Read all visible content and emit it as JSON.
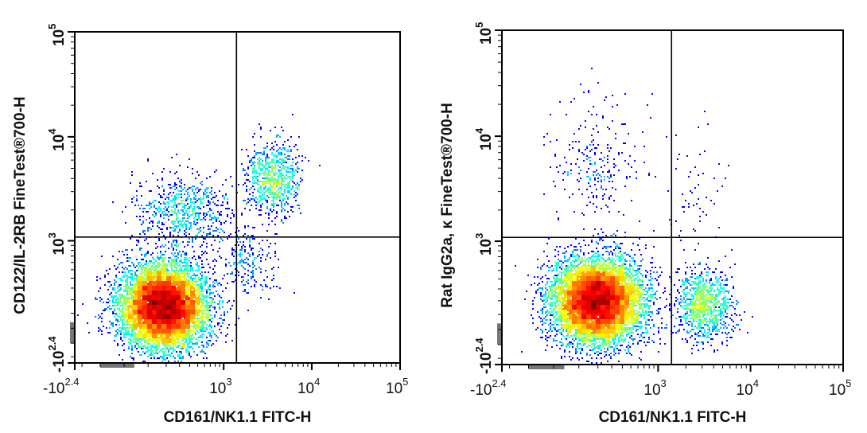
{
  "chart_data": [
    {
      "type": "scatter",
      "subtype": "flow-cytometry-density-dot-plot",
      "xlabel": "CD161/NK1.1 FITC-H",
      "ylabel": "CD122/IL-2RB  FineTest®700-H",
      "xscale": "biexponential",
      "yscale": "biexponential",
      "xlim": [
        -251,
        100000
      ],
      "ylim": [
        -251,
        100000
      ],
      "xticks": [
        {
          "value": -251,
          "base": "-10",
          "exp": "2.4"
        },
        {
          "value": 1000,
          "base": "10",
          "exp": "3"
        },
        {
          "value": 10000,
          "base": "10",
          "exp": "4"
        },
        {
          "value": 100000,
          "base": "10",
          "exp": "5"
        }
      ],
      "yticks": [
        {
          "value": -251,
          "base": "-10",
          "exp": "2.4"
        },
        {
          "value": 1000,
          "base": "10",
          "exp": "3"
        },
        {
          "value": 10000,
          "base": "10",
          "exp": "4"
        },
        {
          "value": 100000,
          "base": "10",
          "exp": "5"
        }
      ],
      "quadrant_gate": {
        "x": 1400,
        "y": 1090
      },
      "colormap": "jet (blue = low density, red = high density)",
      "populations": [
        {
          "x": 187,
          "y": 153,
          "count": 9000,
          "spread_asinh": [
            0.55,
            0.45
          ]
        },
        {
          "x": 3660,
          "y": 3970,
          "count": 800,
          "spread_asinh": [
            0.35,
            0.4
          ]
        },
        {
          "x": 356,
          "y": 1900,
          "count": 700,
          "spread_asinh": [
            0.6,
            0.4
          ]
        },
        {
          "x": 2030,
          "y": 573,
          "count": 200,
          "spread_asinh": [
            0.35,
            0.4
          ]
        }
      ]
    },
    {
      "type": "scatter",
      "subtype": "flow-cytometry-density-dot-plot",
      "xlabel": "CD161/NK1.1 FITC-H",
      "ylabel": "Rat IgG2a, κ  FineTest®700-H",
      "xscale": "biexponential",
      "yscale": "biexponential",
      "xlim": [
        -251,
        100000
      ],
      "ylim": [
        -251,
        100000
      ],
      "xticks": [
        {
          "value": -251,
          "base": "-10",
          "exp": "2.4"
        },
        {
          "value": 1000,
          "base": "10",
          "exp": "3"
        },
        {
          "value": 10000,
          "base": "10",
          "exp": "4"
        },
        {
          "value": 100000,
          "base": "10",
          "exp": "5"
        }
      ],
      "yticks": [
        {
          "value": -251,
          "base": "-10",
          "exp": "2.4"
        },
        {
          "value": 1000,
          "base": "10",
          "exp": "3"
        },
        {
          "value": 10000,
          "base": "10",
          "exp": "4"
        },
        {
          "value": 100000,
          "base": "10",
          "exp": "5"
        }
      ],
      "quadrant_gate": {
        "x": 1400,
        "y": 1090
      },
      "colormap": "jet (blue = low density, red = high density)",
      "populations": [
        {
          "x": 198,
          "y": 195,
          "count": 9000,
          "spread_asinh": [
            0.55,
            0.45
          ]
        },
        {
          "x": 3090,
          "y": 166,
          "count": 1000,
          "spread_asinh": [
            0.35,
            0.4
          ]
        },
        {
          "x": 198,
          "y": 5050,
          "count": 250,
          "spread_asinh": [
            0.6,
            0.8
          ]
        },
        {
          "x": 2600,
          "y": 2600,
          "count": 60,
          "spread_asinh": [
            0.4,
            0.6
          ]
        }
      ]
    }
  ]
}
